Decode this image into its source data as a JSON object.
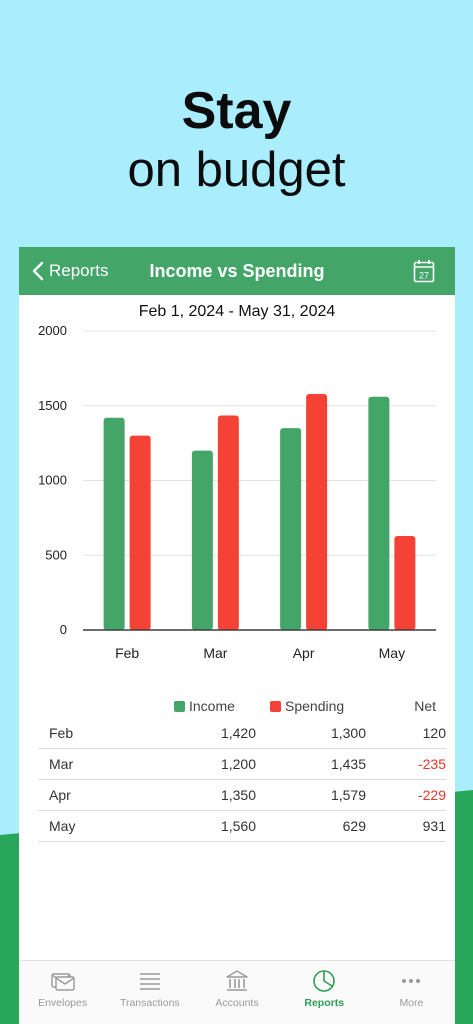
{
  "hero": {
    "line1": "Stay",
    "line2": "on budget"
  },
  "navbar": {
    "back_label": "Reports",
    "title": "Income vs Spending",
    "calendar_day": "27"
  },
  "date_range": "Feb 1, 2024 - May 31, 2024",
  "colors": {
    "income": "#43a568",
    "spending": "#f44336",
    "accent": "#43a568",
    "negative": "#e8352d"
  },
  "chart_data": {
    "type": "bar",
    "categories": [
      "Feb",
      "Mar",
      "Apr",
      "May"
    ],
    "series": [
      {
        "name": "Income",
        "values": [
          1420,
          1200,
          1350,
          1560
        ]
      },
      {
        "name": "Spending",
        "values": [
          1300,
          1435,
          1579,
          629
        ]
      }
    ],
    "ylim": [
      0,
      2000
    ],
    "yticks": [
      "0",
      "500",
      "1000",
      "1500",
      "2000"
    ],
    "grid": true,
    "title": "",
    "xlabel": "",
    "ylabel": ""
  },
  "table": {
    "headers": {
      "income": "Income",
      "spending": "Spending",
      "net": "Net"
    },
    "rows": [
      {
        "month": "Feb",
        "income": "1,420",
        "spending": "1,300",
        "net": "120",
        "negative": false
      },
      {
        "month": "Mar",
        "income": "1,200",
        "spending": "1,435",
        "net": "-235",
        "negative": true
      },
      {
        "month": "Apr",
        "income": "1,350",
        "spending": "1,579",
        "net": "-229",
        "negative": true
      },
      {
        "month": "May",
        "income": "1,560",
        "spending": "629",
        "net": "931",
        "negative": false
      }
    ]
  },
  "tabs": [
    {
      "label": "Envelopes",
      "icon": "envelopes-icon",
      "active": false
    },
    {
      "label": "Transactions",
      "icon": "transactions-icon",
      "active": false
    },
    {
      "label": "Accounts",
      "icon": "accounts-icon",
      "active": false
    },
    {
      "label": "Reports",
      "icon": "reports-icon",
      "active": true
    },
    {
      "label": "More",
      "icon": "more-icon",
      "active": false
    }
  ]
}
